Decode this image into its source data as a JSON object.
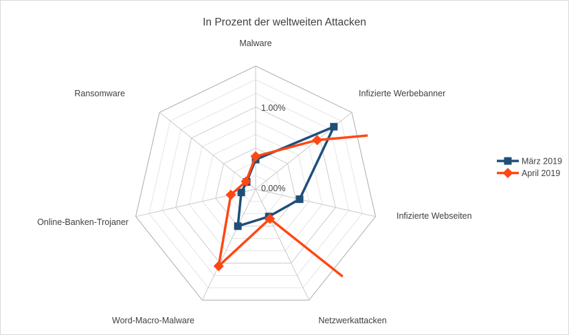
{
  "title": "In Prozent der weltweiten Attacken",
  "colors": {
    "series_blue": "#1F4E79",
    "series_orange": "#FF4713",
    "grid_minor": "#E4E4E4",
    "grid_major": "#CCCCCC",
    "grid_outer": "#ABABAB",
    "spoke": "#C9C9C9",
    "text": "#404040",
    "frame_border": "#D9D9D9"
  },
  "legend": {
    "position": "right",
    "items": [
      {
        "label": "März 2019",
        "marker": "square",
        "color": "#1F4E79"
      },
      {
        "label": "April 2019",
        "marker": "diamond",
        "color": "#FF4713"
      }
    ]
  },
  "chart_data": {
    "type": "radar",
    "title": "In Prozent der weltweiten Attacken",
    "categories": [
      "Malware",
      "Infizierte Werbebanner",
      "Infizierte Webseiten",
      "Netzwerkattacken",
      "Word-Macro-Malware",
      "Online-Banken-Trojaner",
      "Ransomware"
    ],
    "series": [
      {
        "name": "März 2019",
        "color": "#1F4E79",
        "marker": "square",
        "values": [
          0.36,
          1.22,
          0.55,
          0.37,
          0.5,
          0.18,
          0.14
        ]
      },
      {
        "name": "April 2019",
        "color": "#FF4713",
        "marker": "diamond",
        "values": [
          0.4,
          0.96,
          null,
          0.4,
          1.04,
          0.31,
          0.15
        ],
        "note": "Infizierte-Webseiten value lies beyond the axis maximum; both adjoining line segments are clipped at the plot boundary and drawn without a marker",
        "clip_points_pct": [
          {
            "x": 1.366,
            "y": 0.654
          },
          {
            "x": 1.062,
            "y": -1.064
          }
        ]
      }
    ],
    "rmin": 0,
    "rmax": 1.5,
    "minor_rings": 9,
    "major_every": 3,
    "tick_labels": [
      {
        "value": 0.0,
        "label": "0.00%"
      },
      {
        "value": 1.0,
        "label": "1.00%"
      }
    ],
    "grid": true,
    "legend_position": "right"
  }
}
